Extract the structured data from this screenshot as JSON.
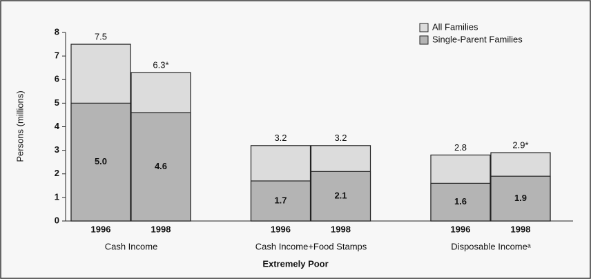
{
  "chart_data": {
    "type": "bar",
    "y_label": "Persons (millions)",
    "x_label": "Extremely Poor",
    "groups": [
      "Cash Income",
      "Cash Income+Food Stamps",
      "Disposable Incomeᵃ"
    ],
    "categories": [
      "1996",
      "1998",
      "1996",
      "1998",
      "1996",
      "1998"
    ],
    "series": [
      {
        "name": "All Families",
        "color": "#dcdcdc",
        "values": [
          7.5,
          6.3,
          3.2,
          3.2,
          2.8,
          2.9
        ],
        "value_labels": [
          "7.5",
          "6.3*",
          "3.2",
          "3.2",
          "2.8",
          "2.9*"
        ]
      },
      {
        "name": "Single-Parent Families",
        "color": "#b4b4b4",
        "values": [
          5.0,
          4.6,
          1.7,
          2.1,
          1.6,
          1.9
        ],
        "value_labels": [
          "5.0",
          "4.6",
          "1.7",
          "2.1",
          "1.6",
          "1.9"
        ]
      }
    ],
    "ylim": [
      0,
      8
    ],
    "yticks": [
      0,
      1,
      2,
      3,
      4,
      5,
      6,
      7,
      8
    ],
    "legend": "top-right"
  }
}
